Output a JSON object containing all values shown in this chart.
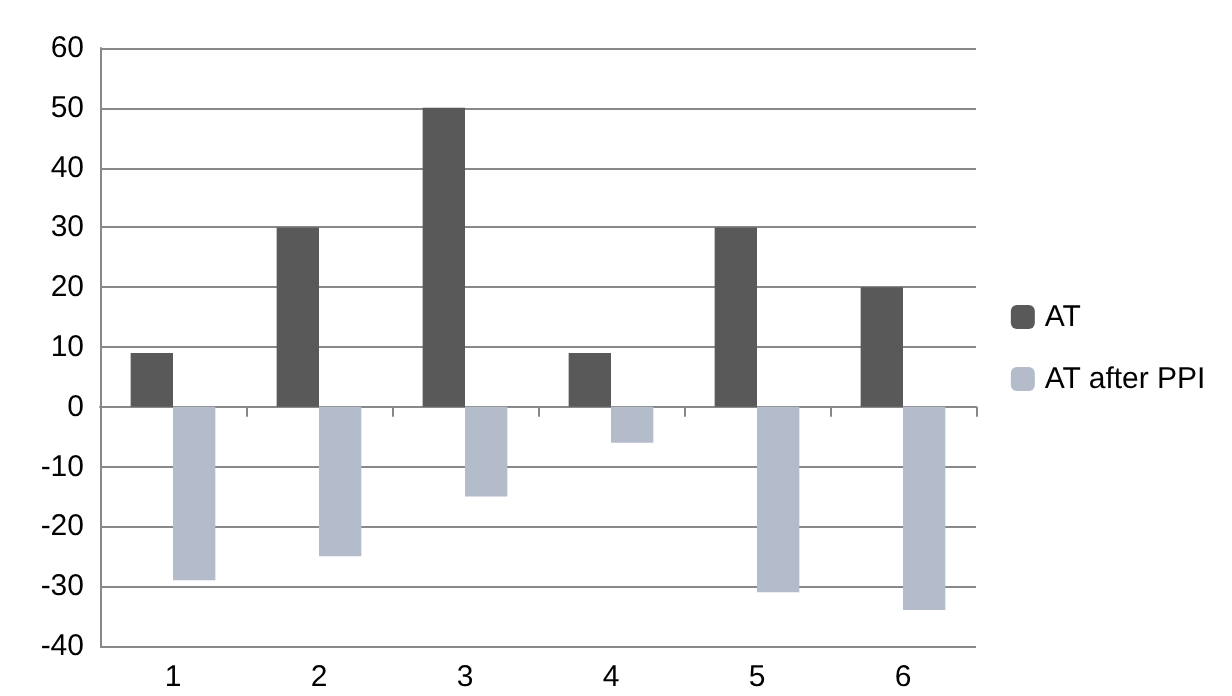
{
  "chart_data": {
    "type": "bar",
    "categories": [
      "1",
      "2",
      "3",
      "4",
      "5",
      "6"
    ],
    "series": [
      {
        "name": "AT",
        "color": "#595959",
        "values": [
          9,
          30,
          50,
          9,
          30,
          20
        ]
      },
      {
        "name": "AT after PPI",
        "color": "#b4bccb",
        "values": [
          -29,
          -25,
          -15,
          -6,
          -31,
          -34
        ]
      }
    ],
    "ylim": [
      -40,
      60
    ],
    "yticks": [
      -40,
      -30,
      -20,
      -10,
      0,
      10,
      20,
      30,
      40,
      50,
      60
    ],
    "grid": "y",
    "legend": "right"
  }
}
